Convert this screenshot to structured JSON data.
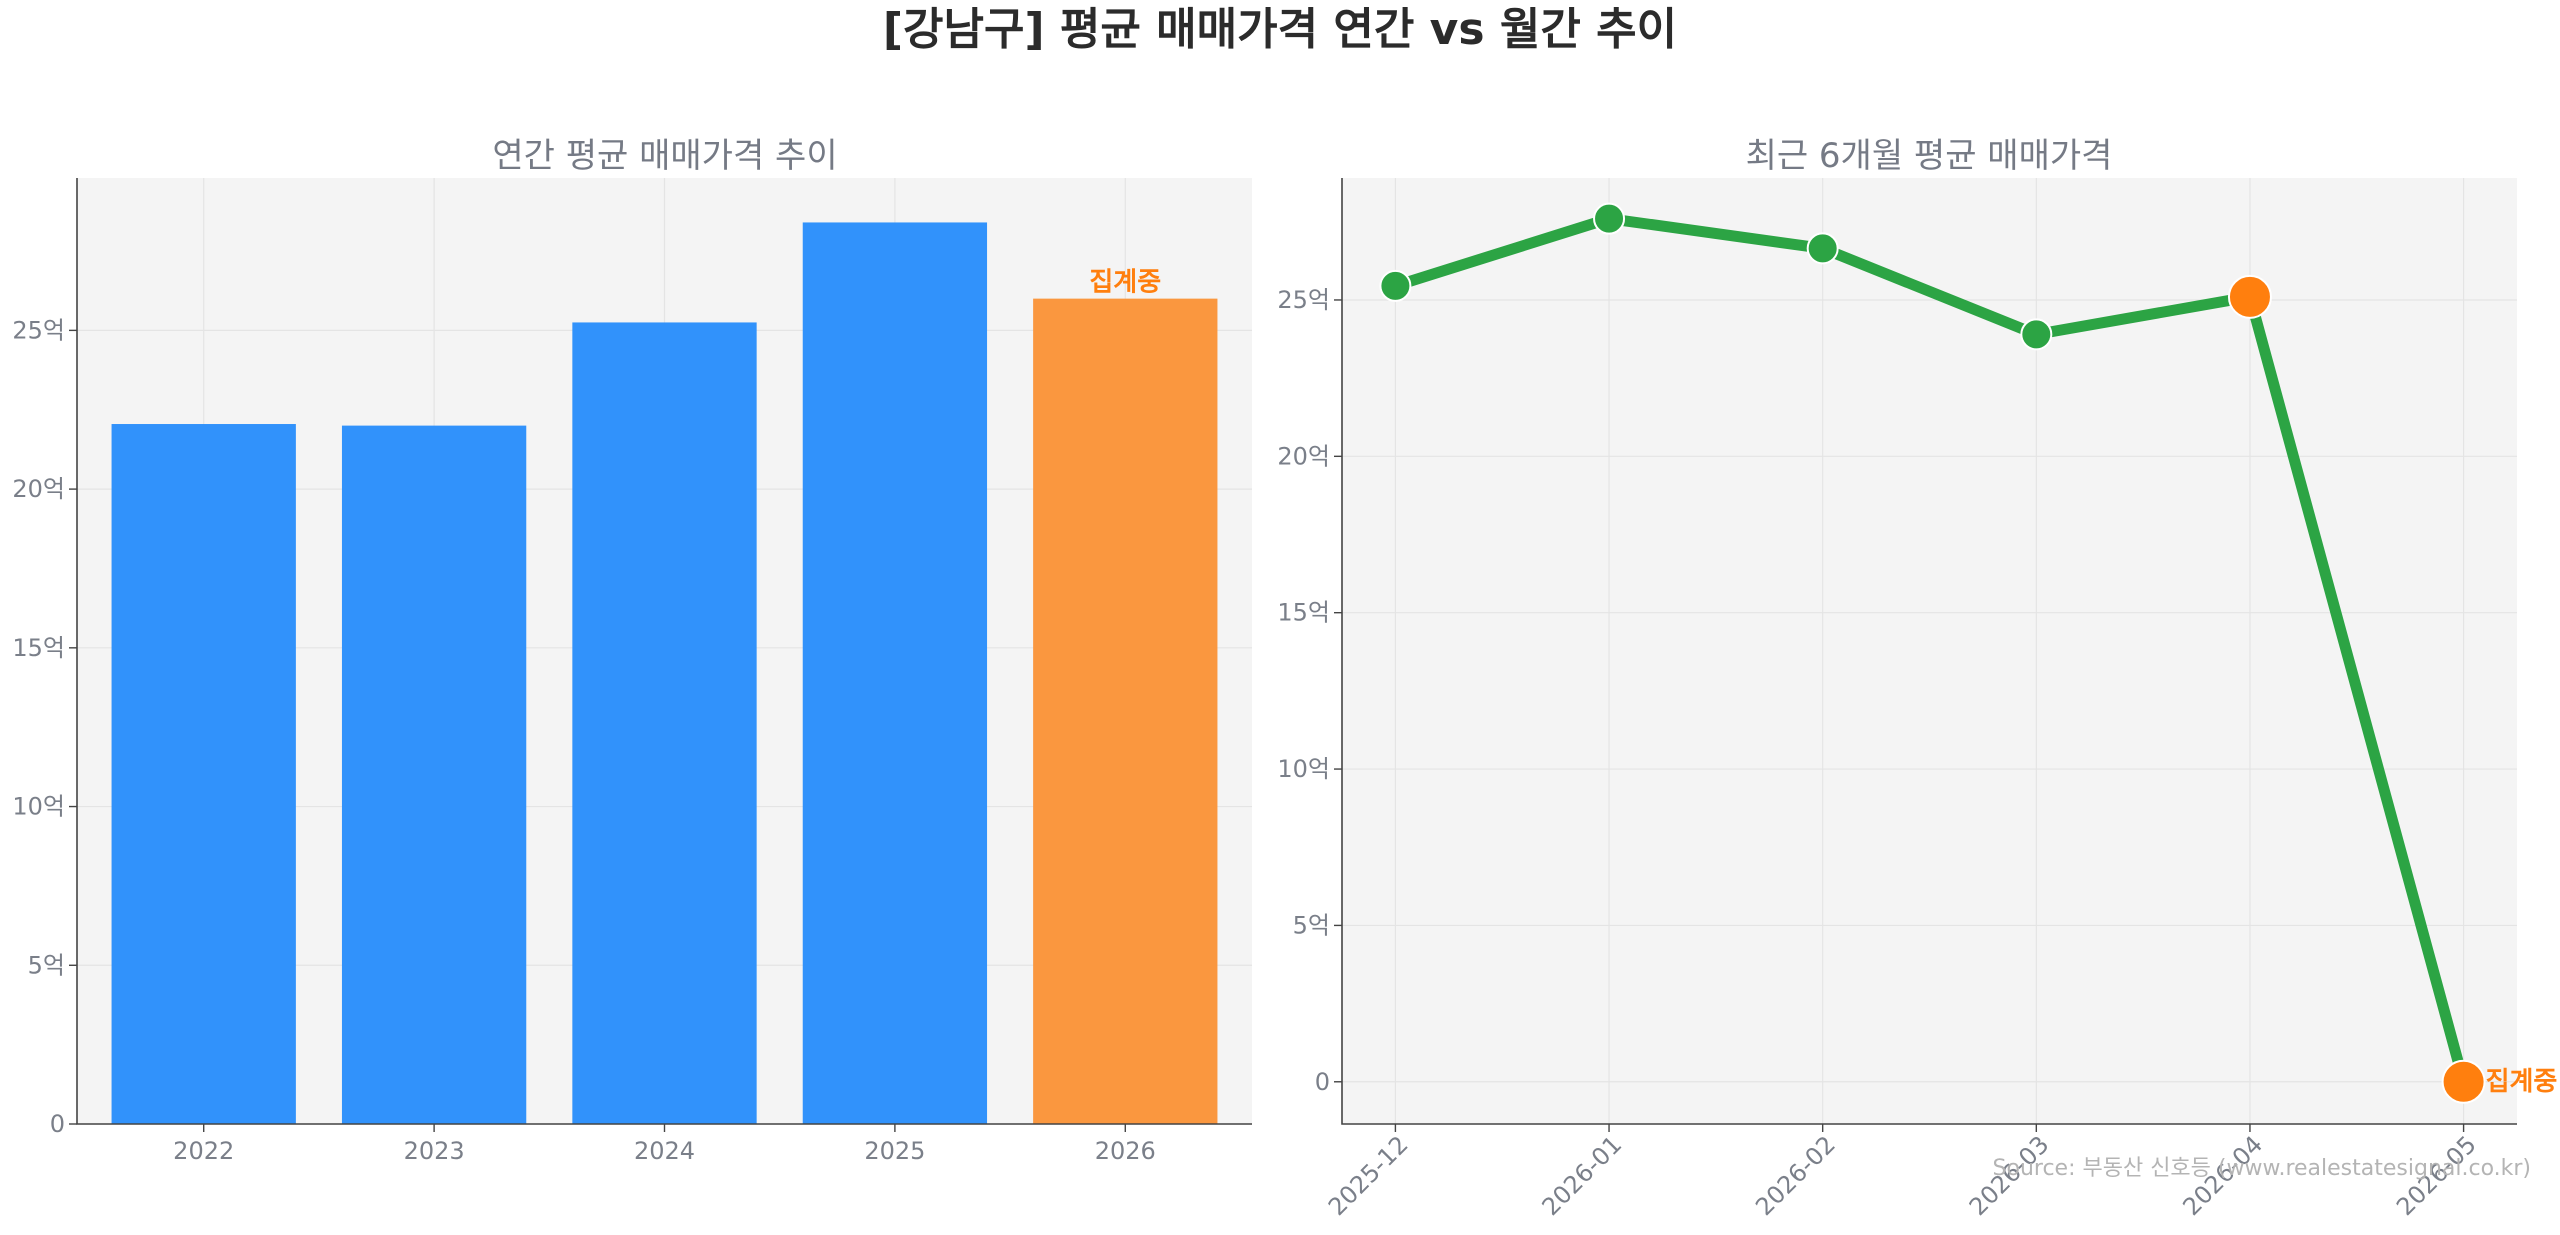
{
  "title": "[강남구] 평균 매매가격 연간 vs 월간 추이",
  "source": "Source: 부동산 신호등 (www.realestatesignal.co.kr)",
  "colors": {
    "bar": "#3192fb",
    "bar_partial": "#fa973f",
    "line": "#2ca444",
    "marker": "#2ca444",
    "marker_partial": "#ff7f0e",
    "note": "#ff7f0e"
  },
  "chart_data": [
    {
      "type": "bar",
      "title": "연간 평균 매매가격 추이",
      "categories": [
        "2022",
        "2023",
        "2024",
        "2025",
        "2026"
      ],
      "values": [
        22.05,
        22.0,
        25.25,
        28.4,
        26.0
      ],
      "unit": "억",
      "ylim": [
        0,
        29.8
      ],
      "yticks": [
        {
          "value": 0,
          "label": "0"
        },
        {
          "value": 5,
          "label": "5억"
        },
        {
          "value": 10,
          "label": "10억"
        },
        {
          "value": 15,
          "label": "15억"
        },
        {
          "value": 20,
          "label": "20억"
        },
        {
          "value": 25,
          "label": "25억"
        }
      ],
      "highlight_index": 4,
      "annotation": {
        "category": "2026",
        "text": "집계중"
      },
      "grid": true
    },
    {
      "type": "line",
      "title": "최근 6개월 평균 매매가격",
      "x": [
        "2025-12",
        "2026-01",
        "2026-02",
        "2026-03",
        "2026-04",
        "2026-05"
      ],
      "values": [
        25.45,
        27.6,
        26.65,
        23.9,
        25.1,
        0
      ],
      "unit": "억",
      "ylim": [
        -1.35,
        28.9
      ],
      "yticks": [
        {
          "value": 0,
          "label": "0"
        },
        {
          "value": 5,
          "label": "5억"
        },
        {
          "value": 10,
          "label": "10억"
        },
        {
          "value": 15,
          "label": "15억"
        },
        {
          "value": 20,
          "label": "20억"
        },
        {
          "value": 25,
          "label": "25억"
        }
      ],
      "highlight_indices": [
        4,
        5
      ],
      "annotation": {
        "x": "2026-05",
        "text": "집계중"
      },
      "grid": true
    }
  ]
}
